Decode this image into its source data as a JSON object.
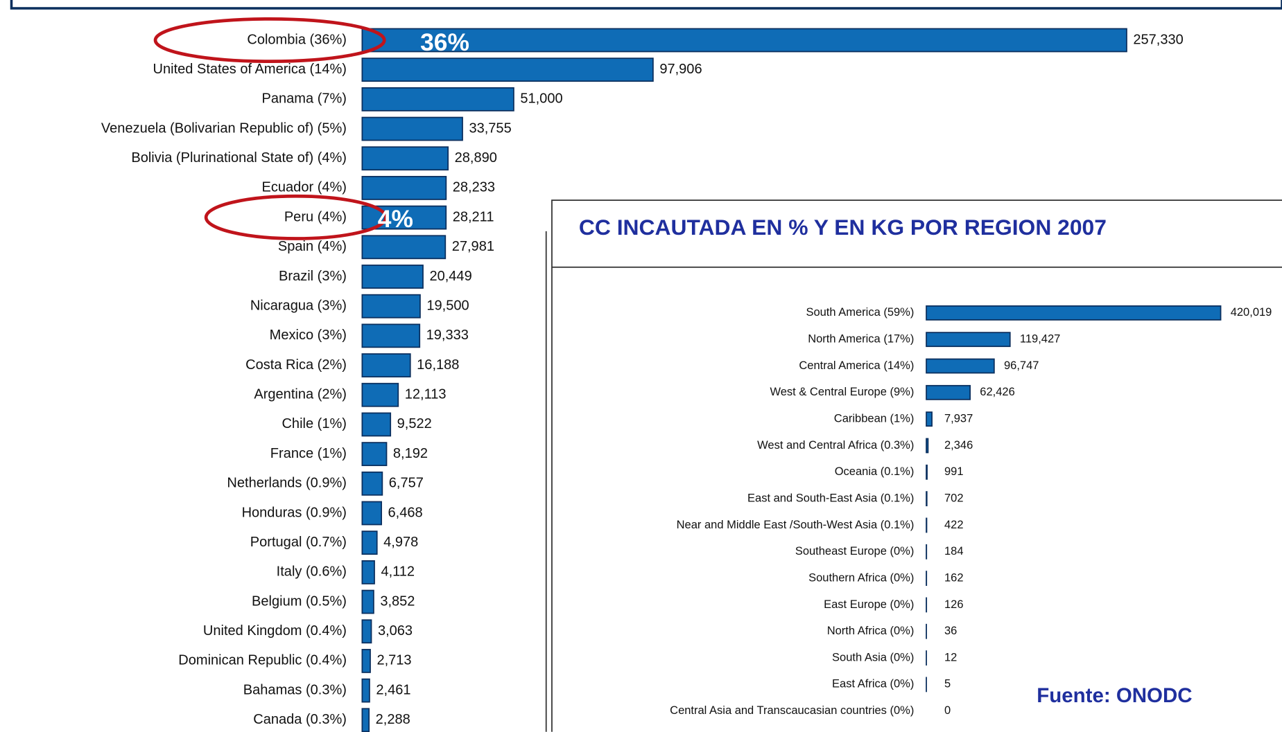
{
  "chart_data": [
    {
      "type": "bar",
      "orientation": "horizontal",
      "color": "#0f6cb6",
      "categories": [
        "Colombia (36%)",
        "United States of America (14%)",
        "Panama (7%)",
        "Venezuela (Bolivarian Republic of) (5%)",
        "Bolivia (Plurinational State of) (4%)",
        "Ecuador (4%)",
        "Peru (4%)",
        "Spain (4%)",
        "Brazil (3%)",
        "Nicaragua (3%)",
        "Mexico (3%)",
        "Costa Rica (2%)",
        "Argentina (2%)",
        "Chile (1%)",
        "France (1%)",
        "Netherlands (0.9%)",
        "Honduras (0.9%)",
        "Portugal (0.7%)",
        "Italy (0.6%)",
        "Belgium (0.5%)",
        "United Kingdom (0.4%)",
        "Dominican Republic (0.4%)",
        "Bahamas (0.3%)",
        "Canada (0.3%)"
      ],
      "values": [
        257330,
        97906,
        51000,
        33755,
        28890,
        28233,
        28211,
        27981,
        20449,
        19500,
        19333,
        16188,
        12113,
        9522,
        8192,
        6757,
        6468,
        4978,
        4112,
        3852,
        3063,
        2713,
        2461,
        2288
      ],
      "value_labels": [
        "257,330",
        "97,906",
        "51,000",
        "33,755",
        "28,890",
        "28,233",
        "28,211",
        "27,981",
        "20,449",
        "19,500",
        "19,333",
        "16,188",
        "12,113",
        "9,522",
        "8,192",
        "6,757",
        "6,468",
        "4,978",
        "4,112",
        "3,852",
        "3,063",
        "2,713",
        "2,461",
        "2,288"
      ],
      "annotations": [
        "36%",
        "4%"
      ]
    },
    {
      "type": "bar",
      "orientation": "horizontal",
      "color": "#0f6cb6",
      "title": "CC INCAUTADA EN % Y EN KG POR REGION 2007",
      "categories": [
        "South America (59%)",
        "North America (17%)",
        "Central America (14%)",
        "West & Central Europe (9%)",
        "Caribbean (1%)",
        "West and Central Africa (0.3%)",
        "Oceania (0.1%)",
        "East and South-East Asia (0.1%)",
        "Near and Middle East /South-West Asia (0.1%)",
        "Southeast Europe (0%)",
        "Southern Africa (0%)",
        "East Europe (0%)",
        "North Africa (0%)",
        "South Asia (0%)",
        "East Africa (0%)",
        "Central Asia and Transcaucasian countries (0%)"
      ],
      "values": [
        420019,
        119427,
        96747,
        62426,
        7937,
        2346,
        991,
        702,
        422,
        184,
        162,
        126,
        36,
        12,
        5,
        0
      ],
      "value_labels": [
        "420,019",
        "119,427",
        "96,747",
        "62,426",
        "7,937",
        "2,346",
        "991",
        "702",
        "422",
        "184",
        "162",
        "126",
        "36",
        "12",
        "5",
        "0"
      ]
    }
  ],
  "source": "Fuente: ONODC"
}
